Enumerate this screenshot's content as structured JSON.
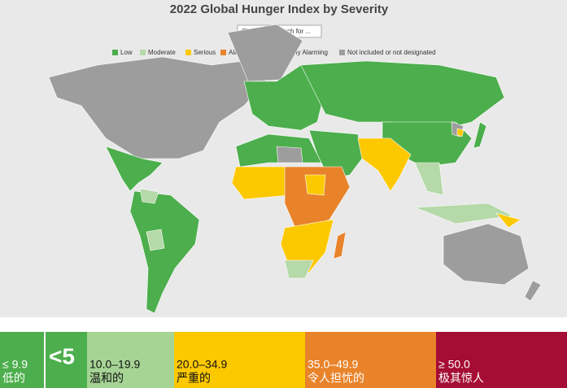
{
  "header": {
    "title": "2022 Global Hunger Index by Severity",
    "dropdown": "Choose or Search for ..."
  },
  "legend": [
    {
      "label": "Low",
      "color": "#4cae4c"
    },
    {
      "label": "Moderate",
      "color": "#b5d9a8"
    },
    {
      "label": "Serious",
      "color": "#fcc800"
    },
    {
      "label": "Alarming",
      "color": "#e8832a"
    },
    {
      "label": "Extremely Alarming",
      "color": "#a50d34"
    },
    {
      "label": "Not included or not designated",
      "color": "#9d9d9d"
    }
  ],
  "scale": [
    {
      "range": "≤ 9.9",
      "label": "低的",
      "color": "#4cae4c",
      "text_color": "#ffffff"
    },
    {
      "range": "10.0–19.9",
      "label": "温和的",
      "color": "#a6d495",
      "text_color": "#111111"
    },
    {
      "range": "20.0–34.9",
      "label": "严重的",
      "color": "#fcc800",
      "text_color": "#111111"
    },
    {
      "range": "35.0–49.9",
      "label": "令人担忧的",
      "color": "#e8832a",
      "text_color": "#ffffff"
    },
    {
      "range": "≥ 50.0",
      "label": "极其惊人",
      "color": "#a50d34",
      "text_color": "#ffffff"
    }
  ],
  "scale_note": "<5"
}
